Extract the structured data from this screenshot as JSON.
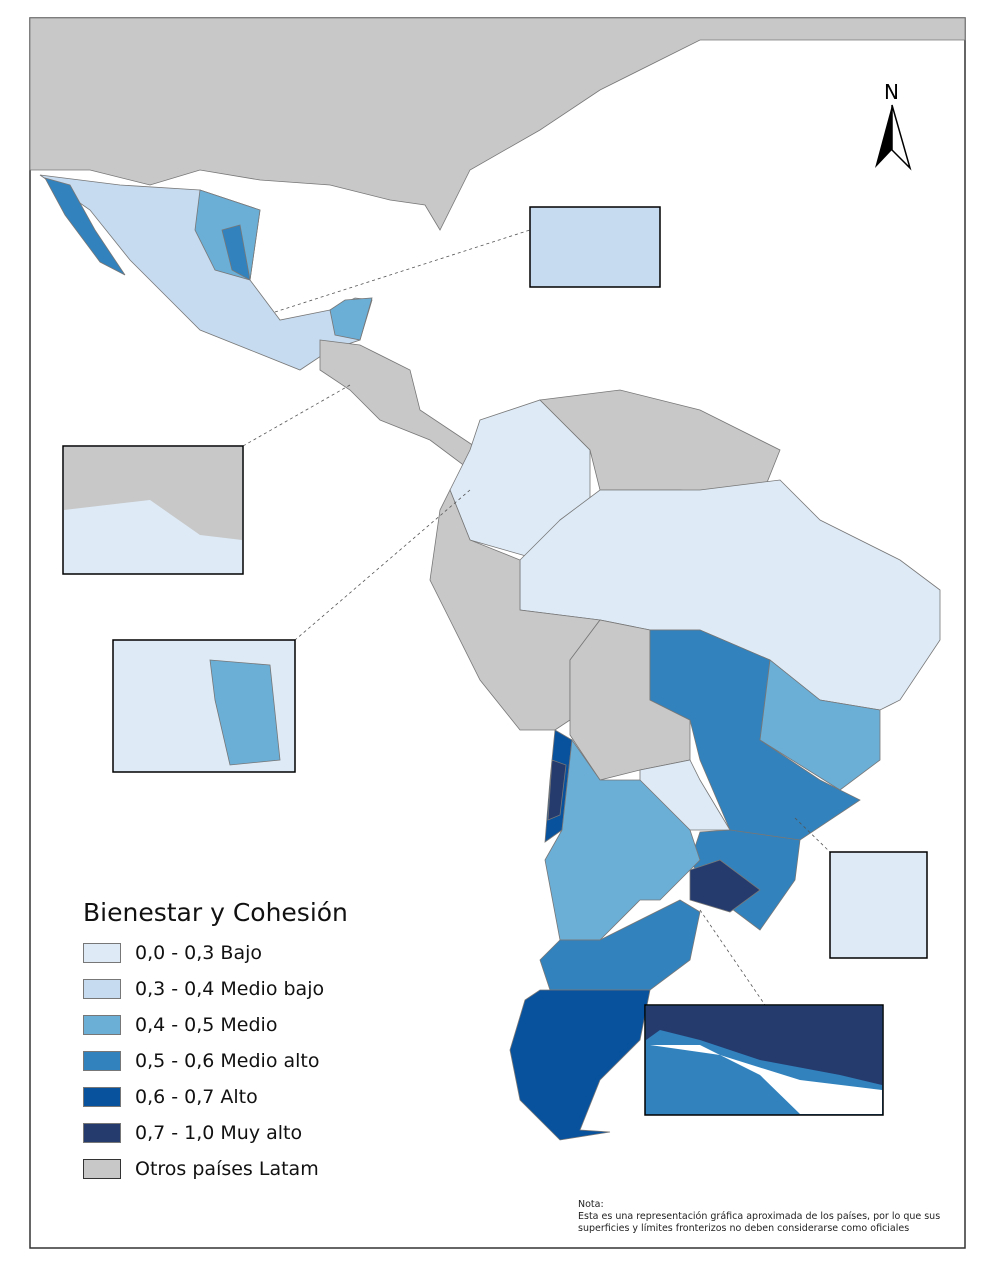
{
  "legend": {
    "title": "Bienestar y Cohesión",
    "items": [
      {
        "label": "0,0 - 0,3 Bajo",
        "color": "#deebf7"
      },
      {
        "label": "0,3 - 0,4 Medio bajo",
        "color": "#c6dbef"
      },
      {
        "label": "0,4 - 0,5 Medio",
        "color": "#6baed6"
      },
      {
        "label": "0,5 - 0,6 Medio alto",
        "color": "#3182bd"
      },
      {
        "label": "0,6 - 0,7 Alto",
        "color": "#08519c"
      },
      {
        "label": "0,7 - 1,0 Muy alto",
        "color": "#253b6e"
      },
      {
        "label": "Otros países Latam",
        "color": "#c8c8c8"
      }
    ]
  },
  "north_label": "N",
  "note": {
    "title": "Nota:",
    "line1": "Esta es una representación gráfica aproximada de los países, por lo que sus",
    "line2": "superficies y límites fronterizos no deben considerarse como oficiales"
  }
}
